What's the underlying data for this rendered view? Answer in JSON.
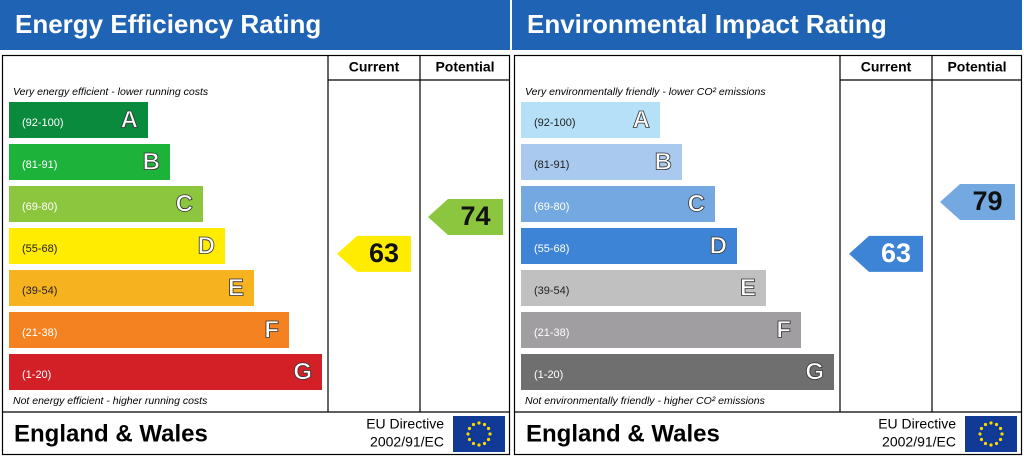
{
  "panels": [
    {
      "title": "Energy Efficiency Rating",
      "columns": [
        "Current",
        "Potential"
      ],
      "top_note": "Very energy efficient - lower running costs",
      "bottom_note": "Not energy efficient - higher running costs",
      "bands": [
        {
          "range": "(92-100)",
          "letter": "A",
          "color": "#0a8a3c"
        },
        {
          "range": "(81-91)",
          "letter": "B",
          "color": "#1db33a"
        },
        {
          "range": "(69-80)",
          "letter": "C",
          "color": "#8cc63f"
        },
        {
          "range": "(55-68)",
          "letter": "D",
          "color": "#ffec00"
        },
        {
          "range": "(39-54)",
          "letter": "E",
          "color": "#f7b21f"
        },
        {
          "range": "(21-38)",
          "letter": "F",
          "color": "#f58220"
        },
        {
          "range": "(1-20)",
          "letter": "G",
          "color": "#d31f26"
        }
      ],
      "current": 63,
      "current_color": "#ffec00",
      "potential": 74,
      "potential_color": "#8cc63f",
      "region": "England & Wales",
      "directive": [
        "EU Directive",
        "2002/91/EC"
      ]
    },
    {
      "title": "Environmental Impact Rating",
      "columns": [
        "Current",
        "Potential"
      ],
      "top_note": "Very environmentally friendly - lower CO² emissions",
      "bottom_note": "Not environmentally friendly - higher CO² emissions",
      "bands": [
        {
          "range": "(92-100)",
          "letter": "A",
          "color": "#b6e0f8"
        },
        {
          "range": "(81-91)",
          "letter": "B",
          "color": "#a9c9ef"
        },
        {
          "range": "(69-80)",
          "letter": "C",
          "color": "#73a8e0"
        },
        {
          "range": "(55-68)",
          "letter": "D",
          "color": "#3d84d6"
        },
        {
          "range": "(39-54)",
          "letter": "E",
          "color": "#c0c0c0"
        },
        {
          "range": "(21-38)",
          "letter": "F",
          "color": "#a09ea0"
        },
        {
          "range": "(1-20)",
          "letter": "G",
          "color": "#6f6f6f"
        }
      ],
      "current": 63,
      "current_color": "#3d84d6",
      "potential": 79,
      "potential_color": "#73a8e0",
      "region": "England & Wales",
      "directive": [
        "EU Directive",
        "2002/91/EC"
      ]
    }
  ]
}
